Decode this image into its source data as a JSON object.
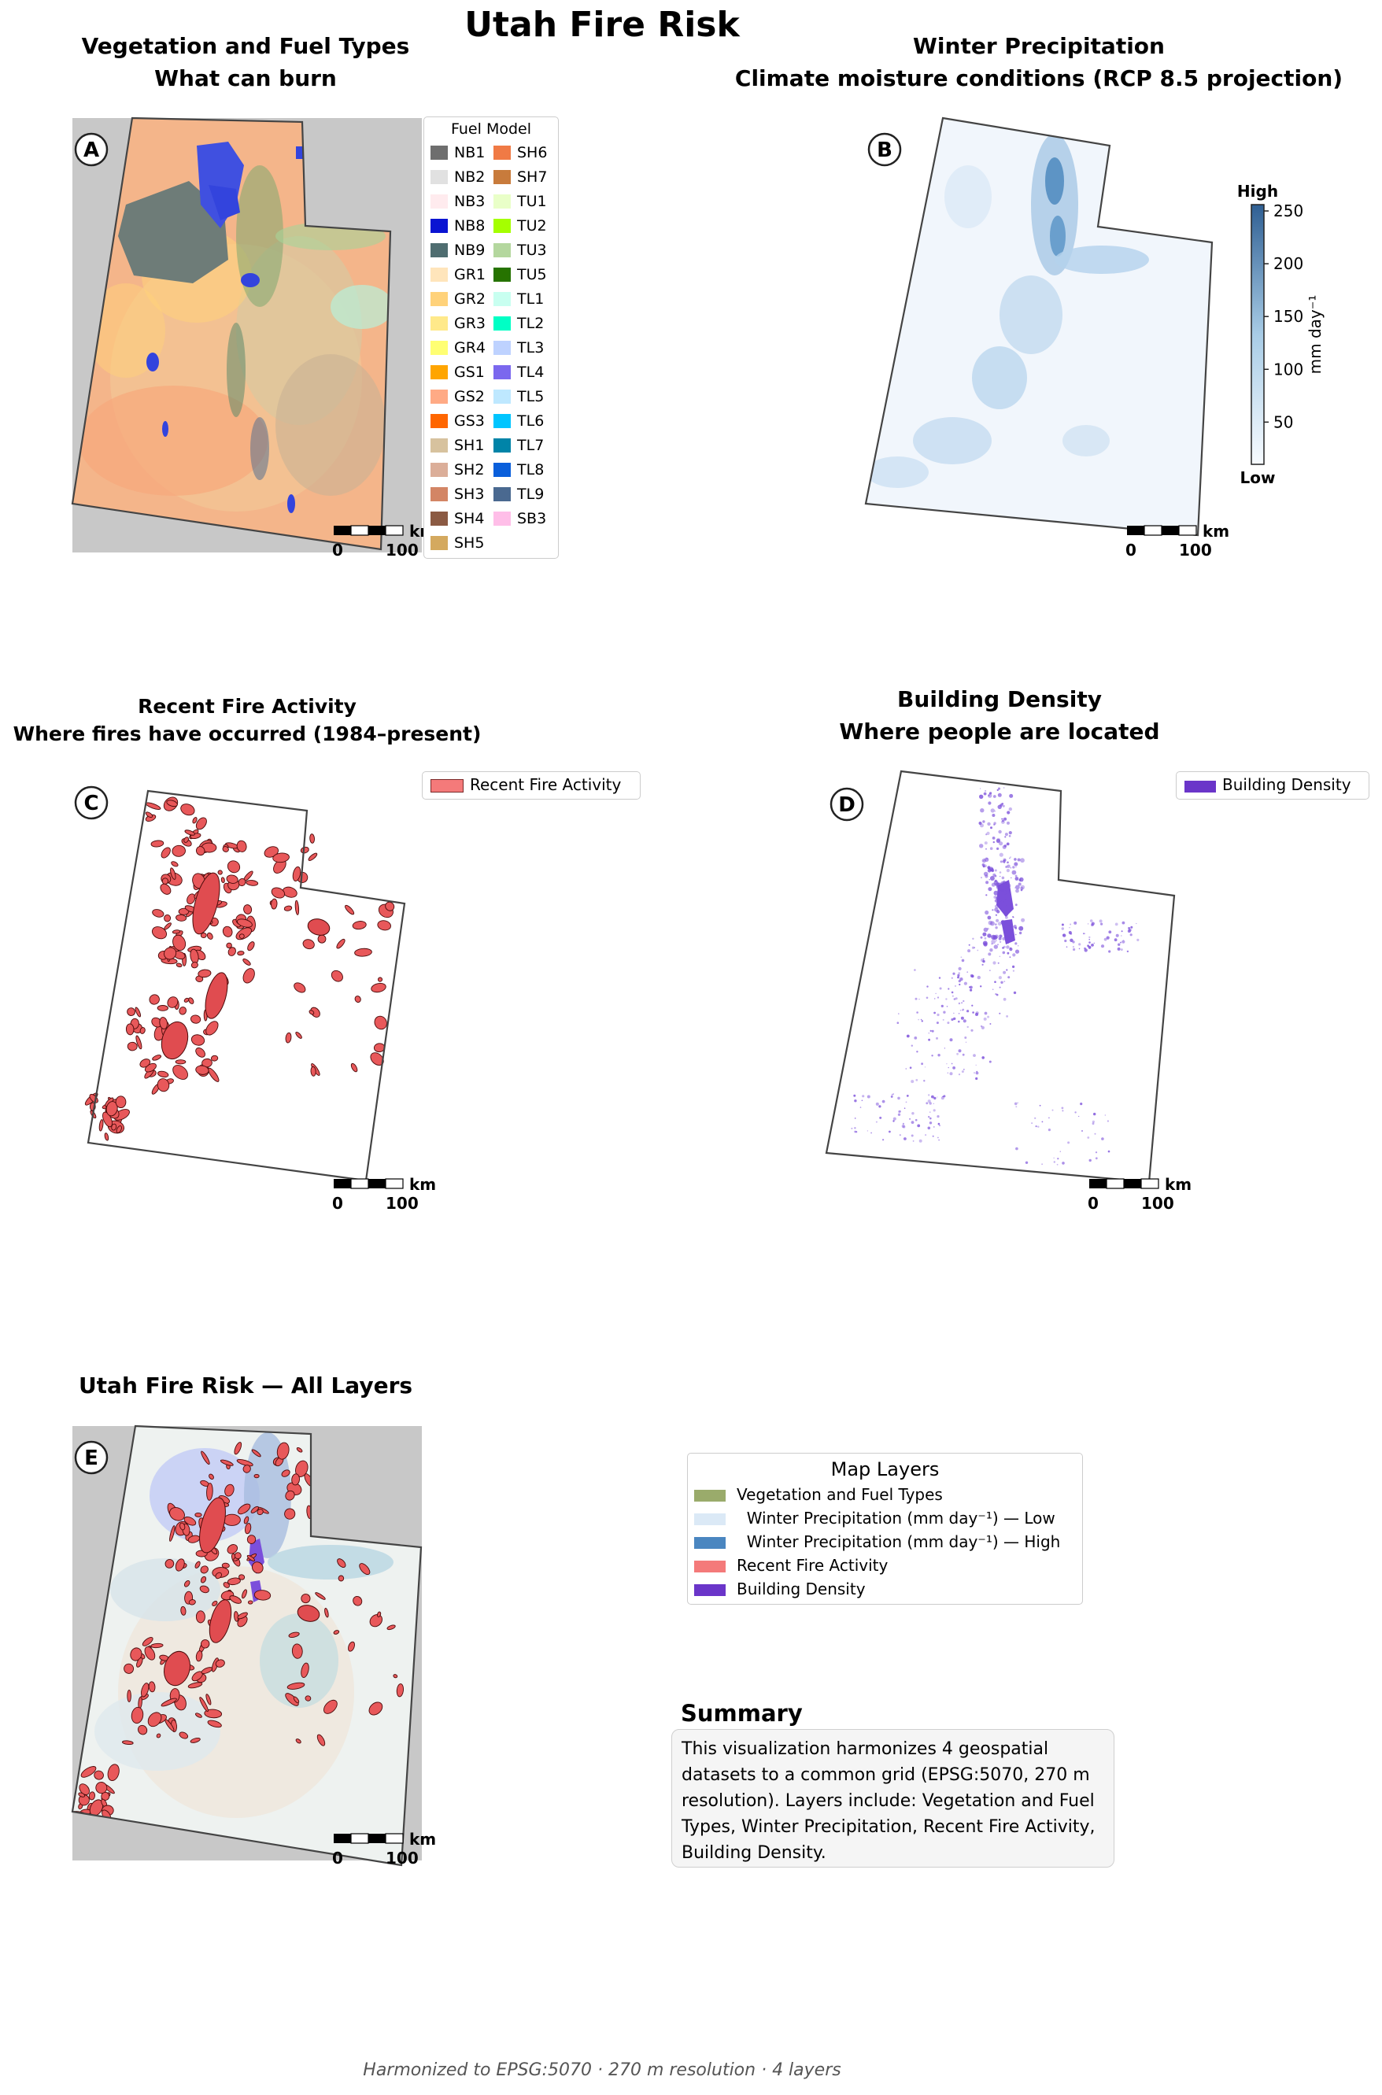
{
  "title": "Utah Fire Risk",
  "panels": {
    "a": {
      "letter": "A",
      "title1": "Vegetation and Fuel Types",
      "title2": "What can burn"
    },
    "b": {
      "letter": "B",
      "title1": "Winter Precipitation",
      "title2": "Climate moisture conditions (RCP 8.5 projection)"
    },
    "c": {
      "letter": "C",
      "title1": "Recent Fire Activity",
      "title2": "Where fires have occurred (1984–present)",
      "legend": "Recent Fire Activity"
    },
    "d": {
      "letter": "D",
      "title1": "Building Density",
      "title2": "Where people are located",
      "legend": "Building Density"
    },
    "e": {
      "letter": "E",
      "title1": "Utah Fire Risk — All Layers"
    }
  },
  "scalebar": {
    "unit": "km",
    "start": "0",
    "end": "100"
  },
  "fuel_legend": {
    "title": "Fuel Model",
    "col1": [
      {
        "label": "NB1",
        "color": "#6e6e6e"
      },
      {
        "label": "NB2",
        "color": "#e1e1e1"
      },
      {
        "label": "NB3",
        "color": "#ffebee"
      },
      {
        "label": "NB8",
        "color": "#0a14d2"
      },
      {
        "label": "NB9",
        "color": "#4f6d70"
      },
      {
        "label": "GR1",
        "color": "#ffe5bb"
      },
      {
        "label": "GR2",
        "color": "#ffd27a"
      },
      {
        "label": "GR3",
        "color": "#ffe98a"
      },
      {
        "label": "GR4",
        "color": "#ffff73"
      },
      {
        "label": "GS1",
        "color": "#ffa500"
      },
      {
        "label": "GS2",
        "color": "#ffaa85"
      },
      {
        "label": "GS3",
        "color": "#ff6600"
      },
      {
        "label": "SH1",
        "color": "#d7c29e"
      },
      {
        "label": "SH2",
        "color": "#dbae99"
      },
      {
        "label": "SH3",
        "color": "#d38565"
      },
      {
        "label": "SH4",
        "color": "#8b5a43"
      },
      {
        "label": "SH5",
        "color": "#d4a95f"
      }
    ],
    "col2": [
      {
        "label": "SH6",
        "color": "#f07a45"
      },
      {
        "label": "SH7",
        "color": "#c87b3c"
      },
      {
        "label": "TU1",
        "color": "#e9ffc8"
      },
      {
        "label": "TU2",
        "color": "#a5ff00"
      },
      {
        "label": "TU3",
        "color": "#b4d79e"
      },
      {
        "label": "TU5",
        "color": "#267300"
      },
      {
        "label": "TL1",
        "color": "#c8fff0"
      },
      {
        "label": "TL2",
        "color": "#00ffc5"
      },
      {
        "label": "TL3",
        "color": "#bed2ff"
      },
      {
        "label": "TL4",
        "color": "#7b68ee"
      },
      {
        "label": "TL5",
        "color": "#bee8ff"
      },
      {
        "label": "TL6",
        "color": "#00c5ff"
      },
      {
        "label": "TL7",
        "color": "#0084a8"
      },
      {
        "label": "TL8",
        "color": "#0a5fdb"
      },
      {
        "label": "TL9",
        "color": "#4a6990"
      },
      {
        "label": "SB3",
        "color": "#ffbee8"
      }
    ]
  },
  "colorbar": {
    "top": "High",
    "bottom": "Low",
    "unit": "mm day⁻¹",
    "ticks": [
      "250",
      "200",
      "150",
      "100",
      "50"
    ],
    "min": 10,
    "max": 256
  },
  "layers_legend": {
    "title": "Map Layers",
    "items": [
      {
        "label": "Vegetation and Fuel Types",
        "color": "#9aab6b"
      },
      {
        "label": "  Winter Precipitation (mm day⁻¹) — Low",
        "color": "#dbe9f6"
      },
      {
        "label": "  Winter Precipitation (mm day⁻¹) — High",
        "color": "#4a86c0"
      },
      {
        "label": "Recent Fire Activity",
        "color": "#f47a7a"
      },
      {
        "label": "Building Density",
        "color": "#6a35c9"
      }
    ]
  },
  "summary": {
    "heading": "Summary",
    "text": "This visualization harmonizes 4 geospatial datasets to a common grid (EPSG:5070, 270 m resolution). Layers include: Vegetation and Fuel Types, Winter Precipitation, Recent Fire Activity, Building Density."
  },
  "footer": "Harmonized to EPSG:5070  ·  270 m resolution  ·  4 layers",
  "colors": {
    "fire": "#e8585a",
    "fire_edge": "#5a0a0a",
    "building": "#7b4fdb",
    "precip_high": "#3f7fb8",
    "background_grey": "#c8c8c8"
  }
}
